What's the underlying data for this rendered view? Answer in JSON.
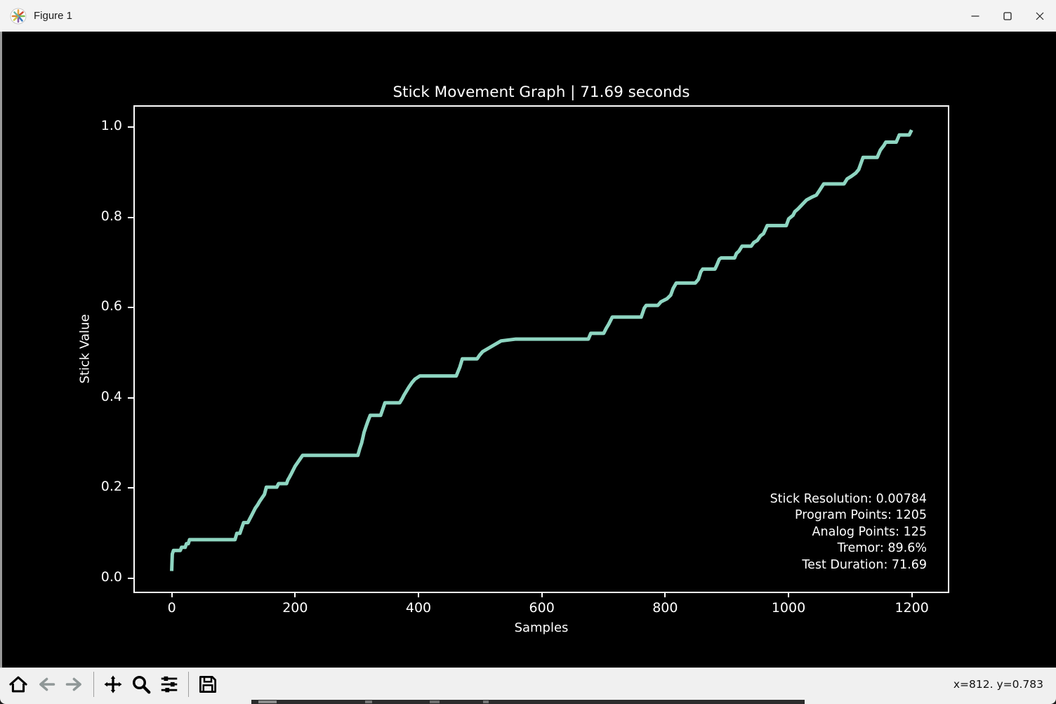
{
  "window": {
    "title": "Figure 1",
    "icon": "matplotlib-logo",
    "controls": [
      "minimize",
      "maximize",
      "close"
    ]
  },
  "toolbar": {
    "buttons": [
      {
        "name": "home",
        "icon": "home-icon",
        "enabled": true
      },
      {
        "name": "back",
        "icon": "arrow-left-icon",
        "enabled": false
      },
      {
        "name": "forward",
        "icon": "arrow-right-icon",
        "enabled": false
      },
      {
        "name": "pan",
        "icon": "pan-arrows-icon",
        "enabled": true
      },
      {
        "name": "zoom",
        "icon": "magnifier-icon",
        "enabled": true
      },
      {
        "name": "configure-subplots",
        "icon": "sliders-icon",
        "enabled": true
      },
      {
        "name": "save",
        "icon": "floppy-disk-icon",
        "enabled": true
      }
    ],
    "status": "x=812. y=0.783"
  },
  "chart_data": {
    "type": "line",
    "title": "Stick Movement Graph | 71.69 seconds",
    "xlabel": "Samples",
    "ylabel": "Stick Value",
    "xlim": [
      -60,
      1263
    ],
    "ylim": [
      -0.036,
      1.045
    ],
    "xticks": [
      {
        "v": 0,
        "label": "0"
      },
      {
        "v": 200,
        "label": "200"
      },
      {
        "v": 400,
        "label": "400"
      },
      {
        "v": 600,
        "label": "600"
      },
      {
        "v": 800,
        "label": "800"
      },
      {
        "v": 1000,
        "label": "1000"
      },
      {
        "v": 1200,
        "label": "1200"
      }
    ],
    "yticks": [
      {
        "v": 0.0,
        "label": "0.0"
      },
      {
        "v": 0.2,
        "label": "0.2"
      },
      {
        "v": 0.4,
        "label": "0.4"
      },
      {
        "v": 0.6,
        "label": "0.6"
      },
      {
        "v": 0.8,
        "label": "0.8"
      },
      {
        "v": 1.0,
        "label": "1.0"
      }
    ],
    "grid": false,
    "legend": "none",
    "line_color": "#8ed5c1",
    "line_width": 5,
    "background": "#000000",
    "annotation_lines": [
      "Stick Resolution: 0.00784",
      "Program Points: 1205",
      "Analog Points: 125",
      "Tremor: 89.6%",
      "Test Duration: 71.69"
    ],
    "points": [
      [
        0,
        0.01
      ],
      [
        1,
        0.048
      ],
      [
        3,
        0.056
      ],
      [
        14,
        0.056
      ],
      [
        16,
        0.063
      ],
      [
        22,
        0.063
      ],
      [
        24,
        0.071
      ],
      [
        27,
        0.071
      ],
      [
        29,
        0.08
      ],
      [
        103,
        0.08
      ],
      [
        106,
        0.094
      ],
      [
        111,
        0.094
      ],
      [
        113,
        0.102
      ],
      [
        115,
        0.11
      ],
      [
        117,
        0.118
      ],
      [
        124,
        0.118
      ],
      [
        127,
        0.126
      ],
      [
        130,
        0.134
      ],
      [
        133,
        0.142
      ],
      [
        136,
        0.15
      ],
      [
        140,
        0.158
      ],
      [
        143,
        0.165
      ],
      [
        147,
        0.173
      ],
      [
        151,
        0.181
      ],
      [
        154,
        0.197
      ],
      [
        171,
        0.197
      ],
      [
        174,
        0.205
      ],
      [
        187,
        0.205
      ],
      [
        189,
        0.213
      ],
      [
        192,
        0.22
      ],
      [
        195,
        0.228
      ],
      [
        198,
        0.236
      ],
      [
        201,
        0.244
      ],
      [
        205,
        0.252
      ],
      [
        209,
        0.26
      ],
      [
        213,
        0.268
      ],
      [
        303,
        0.268
      ],
      [
        306,
        0.283
      ],
      [
        309,
        0.295
      ],
      [
        311,
        0.307
      ],
      [
        313,
        0.319
      ],
      [
        316,
        0.331
      ],
      [
        319,
        0.343
      ],
      [
        323,
        0.357
      ],
      [
        340,
        0.357
      ],
      [
        343,
        0.369
      ],
      [
        347,
        0.385
      ],
      [
        371,
        0.385
      ],
      [
        375,
        0.394
      ],
      [
        378,
        0.402
      ],
      [
        382,
        0.411
      ],
      [
        386,
        0.42
      ],
      [
        391,
        0.43
      ],
      [
        396,
        0.438
      ],
      [
        404,
        0.445
      ],
      [
        463,
        0.445
      ],
      [
        466,
        0.455
      ],
      [
        469,
        0.465
      ],
      [
        473,
        0.483
      ],
      [
        497,
        0.483
      ],
      [
        501,
        0.491
      ],
      [
        506,
        0.499
      ],
      [
        516,
        0.507
      ],
      [
        526,
        0.515
      ],
      [
        536,
        0.523
      ],
      [
        560,
        0.527
      ],
      [
        678,
        0.527
      ],
      [
        682,
        0.54
      ],
      [
        703,
        0.54
      ],
      [
        707,
        0.551
      ],
      [
        711,
        0.56
      ],
      [
        717,
        0.576
      ],
      [
        764,
        0.576
      ],
      [
        769,
        0.596
      ],
      [
        772,
        0.602
      ],
      [
        791,
        0.602
      ],
      [
        796,
        0.61
      ],
      [
        806,
        0.617
      ],
      [
        812,
        0.625
      ],
      [
        816,
        0.64
      ],
      [
        821,
        0.652
      ],
      [
        852,
        0.652
      ],
      [
        857,
        0.66
      ],
      [
        861,
        0.677
      ],
      [
        864,
        0.683
      ],
      [
        884,
        0.683
      ],
      [
        887,
        0.692
      ],
      [
        891,
        0.705
      ],
      [
        894,
        0.708
      ],
      [
        916,
        0.708
      ],
      [
        919,
        0.718
      ],
      [
        923,
        0.723
      ],
      [
        928,
        0.734
      ],
      [
        943,
        0.734
      ],
      [
        947,
        0.742
      ],
      [
        953,
        0.747
      ],
      [
        958,
        0.757
      ],
      [
        963,
        0.762
      ],
      [
        969,
        0.78
      ],
      [
        1000,
        0.78
      ],
      [
        1004,
        0.795
      ],
      [
        1011,
        0.803
      ],
      [
        1014,
        0.811
      ],
      [
        1019,
        0.817
      ],
      [
        1026,
        0.827
      ],
      [
        1033,
        0.837
      ],
      [
        1041,
        0.843
      ],
      [
        1049,
        0.848
      ],
      [
        1054,
        0.858
      ],
      [
        1061,
        0.873
      ],
      [
        1094,
        0.873
      ],
      [
        1099,
        0.884
      ],
      [
        1106,
        0.89
      ],
      [
        1113,
        0.897
      ],
      [
        1118,
        0.905
      ],
      [
        1125,
        0.932
      ],
      [
        1148,
        0.932
      ],
      [
        1153,
        0.948
      ],
      [
        1159,
        0.959
      ],
      [
        1162,
        0.966
      ],
      [
        1179,
        0.966
      ],
      [
        1184,
        0.982
      ],
      [
        1200,
        0.982
      ],
      [
        1204,
        0.993
      ]
    ]
  }
}
